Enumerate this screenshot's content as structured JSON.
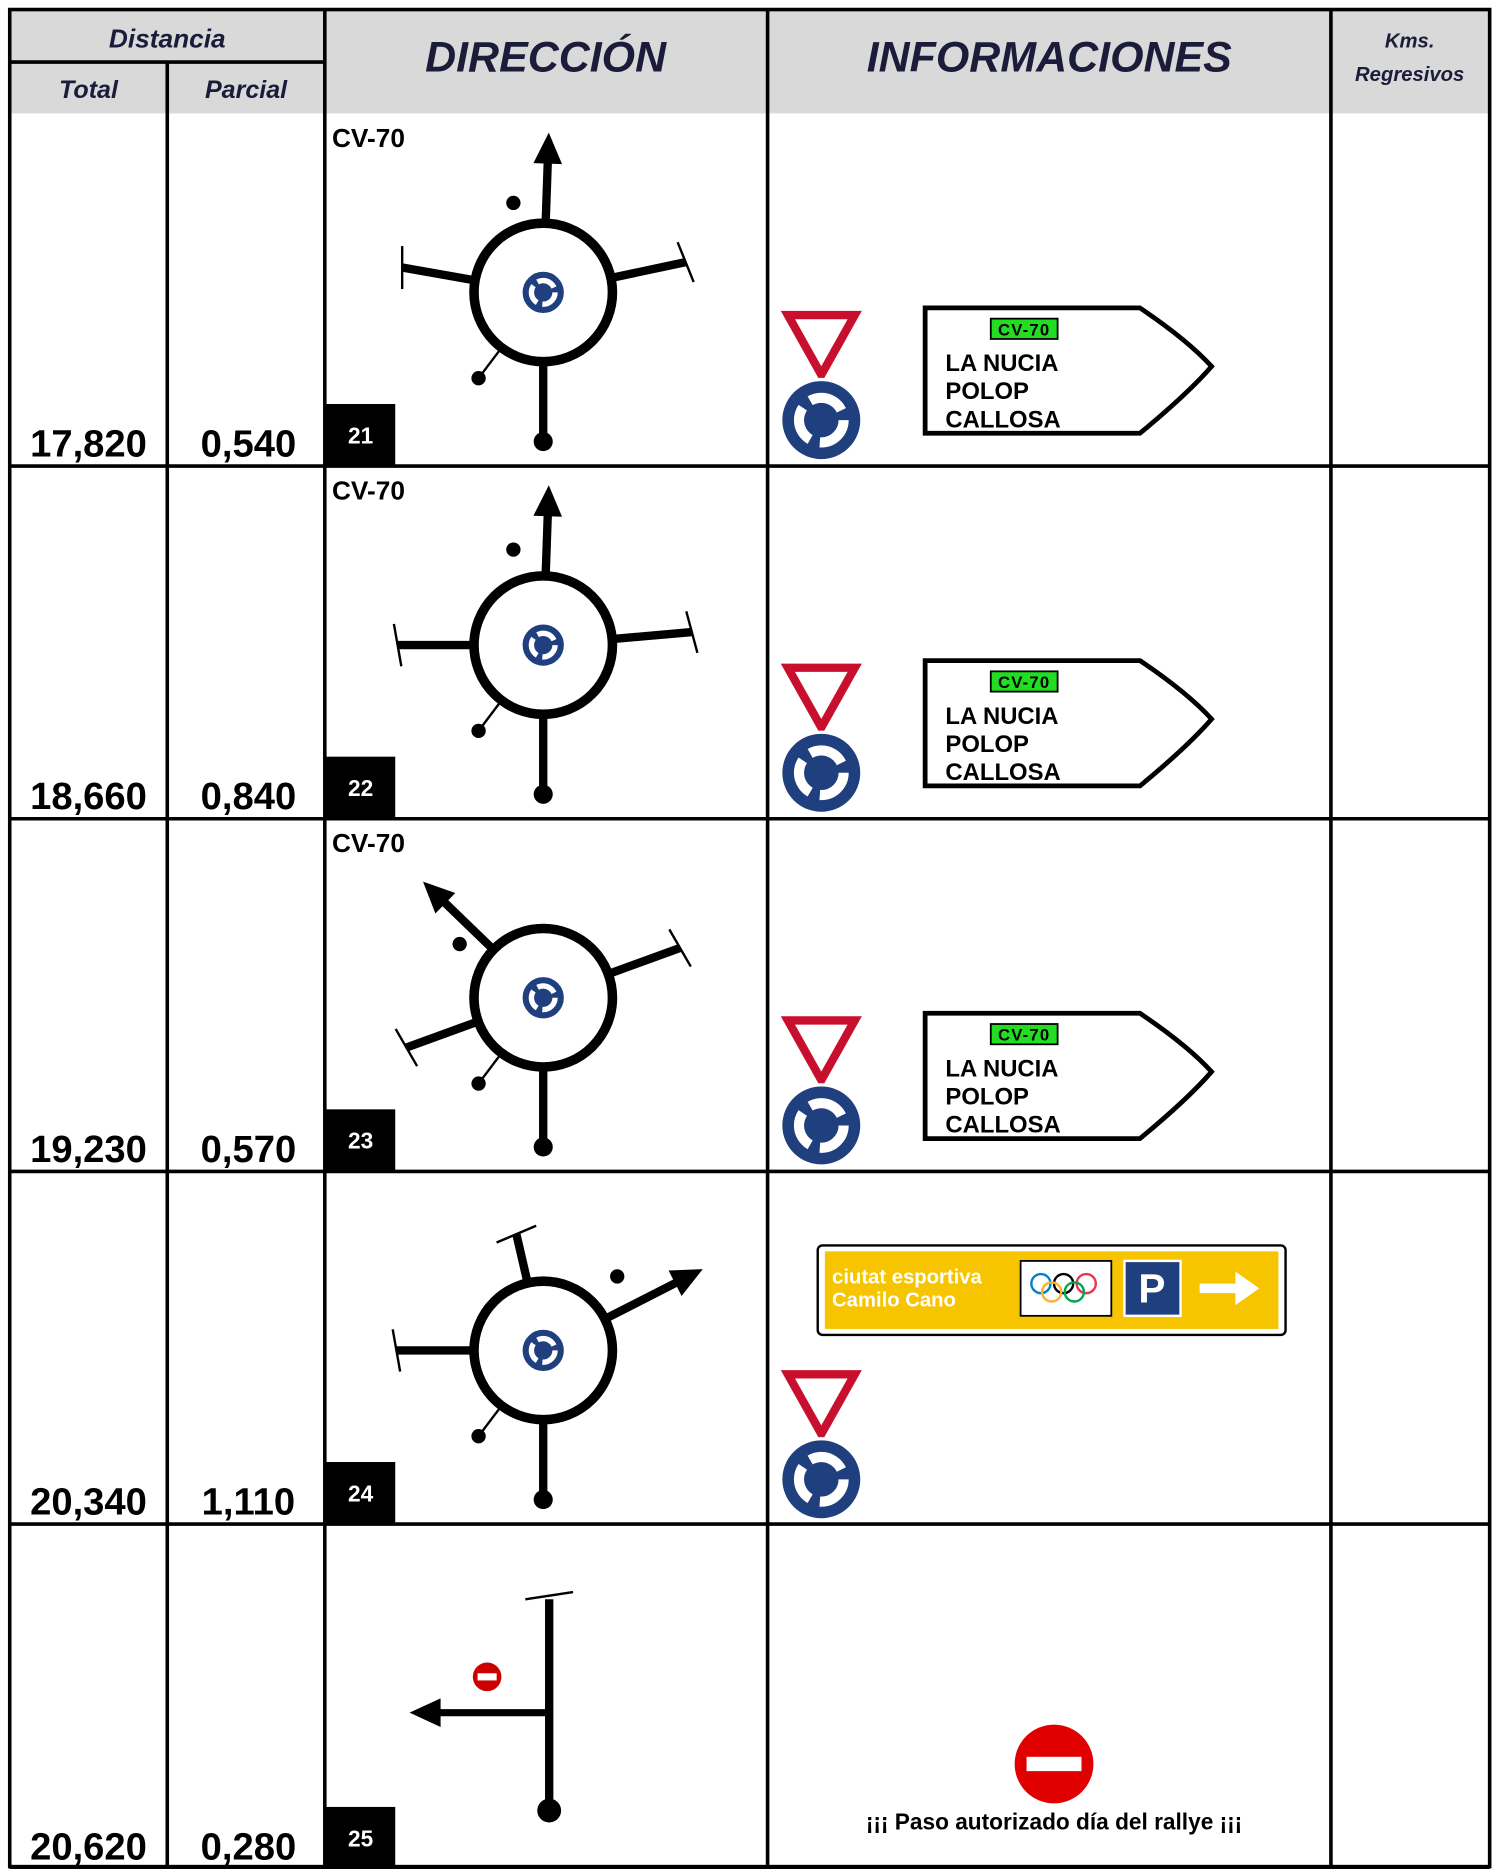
{
  "header": {
    "distancia": "Distancia",
    "total": "Total",
    "parcial": "Parcial",
    "direccion": "DIRECCIÓN",
    "informaciones": "INFORMACIONES",
    "kms": [
      "Kms.",
      "Regresivos"
    ]
  },
  "rows": [
    {
      "total": "17,820",
      "parcial": "0,540",
      "road": "CV-70",
      "number": "21",
      "sign": {
        "route": "CV-70",
        "lines": [
          "LA NUCIA",
          "POLOP",
          "CALLOSA"
        ]
      }
    },
    {
      "total": "18,660",
      "parcial": "0,840",
      "road": "CV-70",
      "number": "22",
      "sign": {
        "route": "CV-70",
        "lines": [
          "LA NUCIA",
          "POLOP",
          "CALLOSA"
        ]
      }
    },
    {
      "total": "19,230",
      "parcial": "0,570",
      "road": "CV-70",
      "number": "23",
      "sign": {
        "route": "CV-70",
        "lines": [
          "LA NUCIA",
          "POLOP",
          "CALLOSA"
        ]
      }
    },
    {
      "total": "20,340",
      "parcial": "1,110",
      "number": "24",
      "panel": {
        "lines": [
          "ciutat esportiva",
          "Camilo Cano"
        ],
        "parking": "P"
      }
    },
    {
      "total": "20,620",
      "parcial": "0,280",
      "number": "25",
      "notice": "¡¡¡ Paso autorizado día del rallye ¡¡¡"
    }
  ]
}
